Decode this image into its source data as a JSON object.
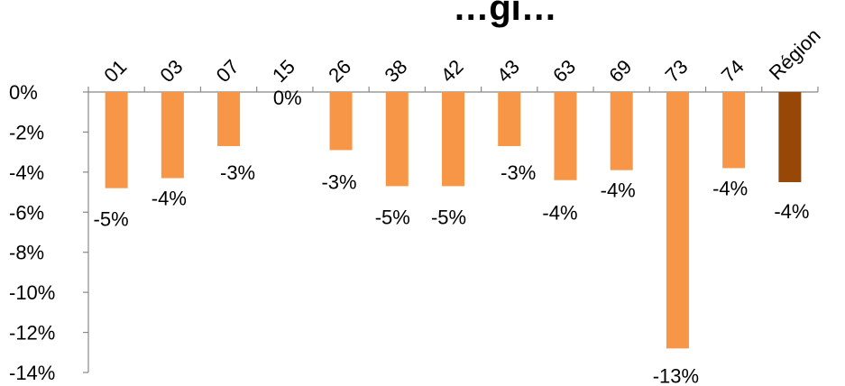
{
  "chart_data": {
    "type": "bar",
    "title": "…gi…",
    "xlabel": "",
    "ylabel": "",
    "categories": [
      "01",
      "03",
      "07",
      "15",
      "26",
      "38",
      "42",
      "43",
      "63",
      "69",
      "73",
      "74",
      "Région"
    ],
    "values": [
      -4.8,
      -4.3,
      -2.7,
      0.0,
      -2.9,
      -4.7,
      -4.7,
      -2.7,
      -4.4,
      -3.9,
      -12.8,
      -3.8,
      -4.5
    ],
    "data_labels": [
      "-5%",
      "-4%",
      "-3%",
      "0%",
      "-3%",
      "-5%",
      "-5%",
      "-3%",
      "-4%",
      "-4%",
      "-13%",
      "-4%",
      "-4%"
    ],
    "ylim": [
      -14,
      0
    ],
    "yticks": [
      0,
      -2,
      -4,
      -6,
      -8,
      -10,
      -12,
      -14
    ],
    "ytick_labels": [
      "0%",
      "-2%",
      "-4%",
      "-6%",
      "-8%",
      "-10%",
      "-12%",
      "-14%"
    ],
    "grid": false,
    "colors": {
      "bar": "#F79646",
      "highlight": "#974806",
      "axis": "#888888"
    },
    "highlight_category": "Région"
  }
}
